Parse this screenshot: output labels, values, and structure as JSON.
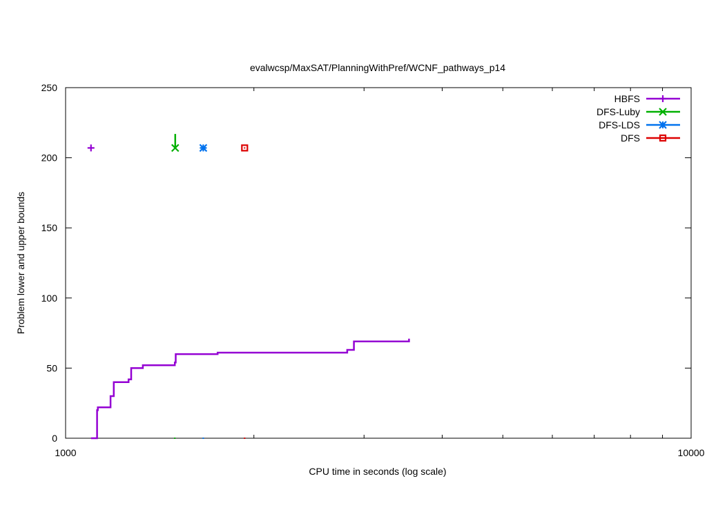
{
  "chart_data": {
    "type": "line",
    "title": "evalwcsp/MaxSAT/PlanningWithPref/WCNF_pathways_p14",
    "xlabel": "CPU time in seconds (log scale)",
    "ylabel": "Problem lower and upper bounds",
    "xscale": "log",
    "xlim": [
      1000,
      10000
    ],
    "ylim": [
      0,
      250
    ],
    "xticks": [
      1000,
      2000,
      3000,
      4000,
      5000,
      6000,
      7000,
      8000,
      9000,
      10000
    ],
    "xtick_labels": [
      {
        "value": 1000,
        "label": "1000"
      },
      {
        "value": 10000,
        "label": "10000"
      }
    ],
    "yticks": [
      {
        "value": 0,
        "label": "0"
      },
      {
        "value": 50,
        "label": "50"
      },
      {
        "value": 100,
        "label": "100"
      },
      {
        "value": 150,
        "label": "150"
      },
      {
        "value": 200,
        "label": "200"
      },
      {
        "value": 250,
        "label": "250"
      }
    ],
    "grid": false,
    "legend_position": "top-right",
    "series": [
      {
        "name": "HBFS",
        "color": "#9400d3",
        "marker": "plus",
        "lower_bound": [
          [
            1098,
            0
          ],
          [
            1123,
            0
          ],
          [
            1123,
            20
          ],
          [
            1126,
            20
          ],
          [
            1126,
            22
          ],
          [
            1180,
            22
          ],
          [
            1180,
            30
          ],
          [
            1194,
            30
          ],
          [
            1194,
            40
          ],
          [
            1261,
            40
          ],
          [
            1261,
            42
          ],
          [
            1273,
            42
          ],
          [
            1273,
            50
          ],
          [
            1329,
            50
          ],
          [
            1329,
            52
          ],
          [
            1495,
            52
          ],
          [
            1495,
            54
          ],
          [
            1500,
            54
          ],
          [
            1500,
            60
          ],
          [
            1750,
            60
          ],
          [
            1750,
            61
          ],
          [
            2820,
            61
          ],
          [
            2820,
            63
          ],
          [
            2890,
            63
          ],
          [
            2890,
            69
          ],
          [
            3540,
            69
          ],
          [
            3540,
            71
          ]
        ],
        "upper_bound": [
          [
            1098,
            207
          ]
        ]
      },
      {
        "name": "DFS-Luby",
        "color": "#00b000",
        "marker": "cross",
        "lower_bound": [
          [
            1495,
            0
          ]
        ],
        "upper_bound": [
          [
            1497,
            217
          ],
          [
            1497,
            207
          ]
        ]
      },
      {
        "name": "DFS-LDS",
        "color": "#0072ee",
        "marker": "star",
        "lower_bound": [
          [
            1660,
            0
          ]
        ],
        "upper_bound": [
          [
            1660,
            207
          ]
        ]
      },
      {
        "name": "DFS",
        "color": "#dd0000",
        "marker": "square",
        "lower_bound": [
          [
            1933,
            0
          ]
        ],
        "upper_bound": [
          [
            1933,
            207
          ]
        ]
      }
    ]
  }
}
